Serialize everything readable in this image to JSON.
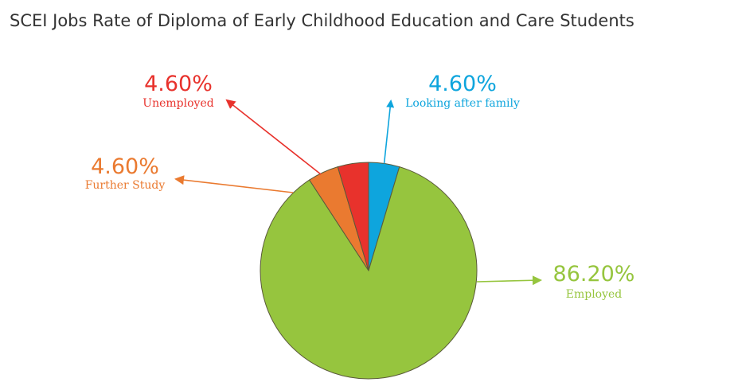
{
  "chart_data": {
    "type": "pie",
    "title": "SCEI Jobs Rate of Diploma of Early Childhood Education and Care Students",
    "slices": [
      {
        "label": "Looking after family",
        "value": 4.6,
        "display": "4.60%",
        "color": "#0ea5dd"
      },
      {
        "label": "Employed",
        "value": 86.2,
        "display": "86.20%",
        "color": "#96c53e"
      },
      {
        "label": "Further Study",
        "value": 4.6,
        "display": "4.60%",
        "color": "#ea7a30"
      },
      {
        "label": "Unemployed",
        "value": 4.6,
        "display": "4.60%",
        "color": "#e8322c"
      }
    ],
    "start": "12 o'clock",
    "direction": "clockwise",
    "legend": "none; labels with arrows"
  }
}
